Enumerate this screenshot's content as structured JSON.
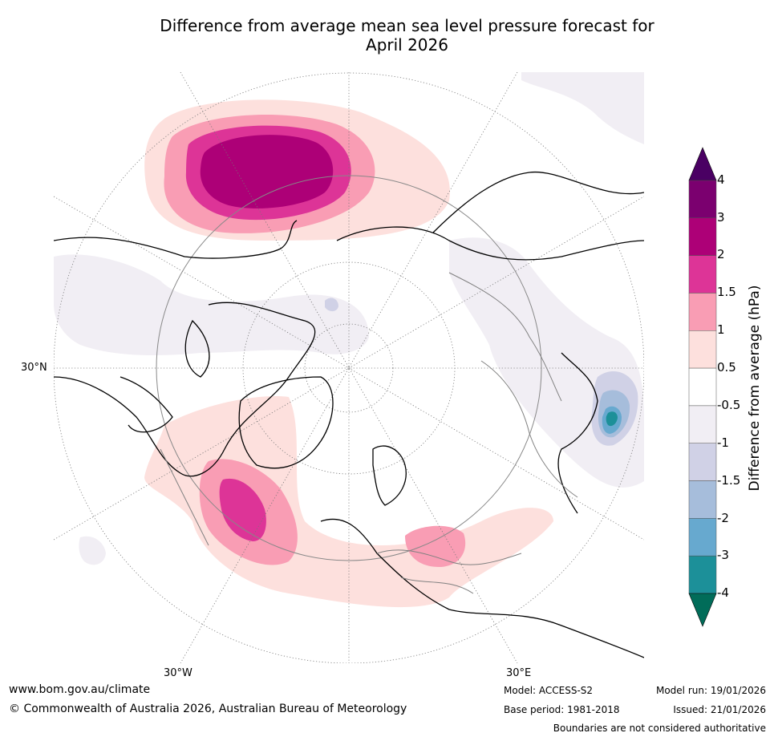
{
  "title": {
    "line1": "Difference from average mean sea level pressure forecast for",
    "line2": "April 2026"
  },
  "map": {
    "lat_label": "30°N",
    "lon_labels": {
      "west": "30°W",
      "east": "30°E"
    },
    "colors": {
      "land": "#000000",
      "borders": "#808080",
      "graticule": "#777777"
    }
  },
  "colorbar": {
    "title": "Difference from average (hPa)",
    "levels": [
      "4",
      "3",
      "2",
      "1.5",
      "1",
      "0.5",
      "-0.5",
      "-1",
      "-1.5",
      "-2",
      "-3",
      "-4"
    ],
    "colors": [
      {
        "range": ">4",
        "color": "#4a0063"
      },
      {
        "range": "3 to 4",
        "color": "#7b006f"
      },
      {
        "range": "2 to 3",
        "color": "#ad0077"
      },
      {
        "range": "1.5 to 2",
        "color": "#dd3497"
      },
      {
        "range": "1 to 1.5",
        "color": "#f99db4"
      },
      {
        "range": "0.5 to 1",
        "color": "#fde0dd"
      },
      {
        "range": "-0.5 to 0.5",
        "color": "#ffffff"
      },
      {
        "range": "-1 to -0.5",
        "color": "#f1eef4"
      },
      {
        "range": "-1.5 to -1",
        "color": "#d0d1e6"
      },
      {
        "range": "-2 to -1.5",
        "color": "#a6bddb"
      },
      {
        "range": "-3 to -2",
        "color": "#67a9cf"
      },
      {
        "range": "-4 to -3",
        "color": "#1c9099"
      },
      {
        "range": "<-4",
        "color": "#016c59"
      }
    ]
  },
  "footer": {
    "website": "www.bom.gov.au/climate",
    "copyright": "© Commonwealth of Australia 2026, Australian Bureau of Meteorology",
    "model": "Model: ACCESS-S2",
    "base_period": "Base period: 1981-2018",
    "model_run": "Model run: 19/01/2026",
    "issued": "Issued: 21/01/2026",
    "boundaries": "Boundaries are not considered authoritative"
  }
}
